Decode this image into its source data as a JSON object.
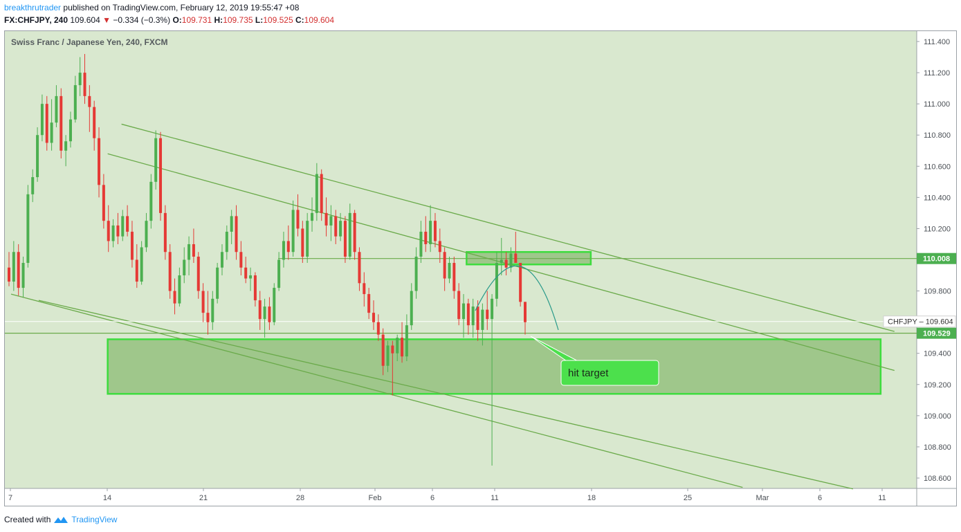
{
  "header": {
    "author": "breakthrutrader",
    "published": "published on TradingView.com, February 12, 2019 19:55:47 +08",
    "symbol": "FX:CHFJPY, 240",
    "last": "109.604",
    "change": "−0.334 (−0.3%)",
    "o_label": "O:",
    "o_value": "109.731",
    "h_label": "H:",
    "h_value": "109.735",
    "l_label": "L:",
    "l_value": "109.525",
    "c_label": "C:",
    "c_value": "109.604"
  },
  "footer": {
    "created_with": "Created with",
    "brand": "TradingView"
  },
  "colors": {
    "background": "#d9e8cf",
    "zone_fill": "#9fc78b",
    "zone_stroke": "#3ddc3d",
    "trendline": "#6aaa4a",
    "candle_up": "#4caf50",
    "candle_down": "#e53935",
    "callout_fill": "#4ce04c",
    "price_tag_green": "#4caf50"
  },
  "chart_data": {
    "type": "candlestick",
    "title": "Swiss Franc / Japanese Yen, 240, FXCM",
    "x_ticks": [
      "7",
      "14",
      "21",
      "28",
      "Feb",
      "6",
      "11",
      "18",
      "25",
      "Mar",
      "6",
      "11"
    ],
    "y_ticks": [
      "111.400",
      "111.200",
      "111.000",
      "110.800",
      "110.600",
      "110.400",
      "110.200",
      "110.000",
      "109.800",
      "109.600",
      "109.400",
      "109.200",
      "109.000",
      "108.800",
      "108.600"
    ],
    "ylim": [
      108.5,
      111.5
    ],
    "grid": false,
    "price_labels": [
      {
        "text": "110.008",
        "value": 110.008,
        "style": "green"
      },
      {
        "text": "CHFJPY",
        "value": 109.604,
        "style": "white",
        "price": "109.604"
      },
      {
        "text": "109.529",
        "value": 109.529,
        "style": "green"
      }
    ],
    "horizontal_lines": [
      110.008,
      109.604,
      109.529
    ],
    "zones": [
      {
        "name": "upper-zone",
        "x": [
          "Feb 9",
          "Feb 18"
        ],
        "y": [
          109.97,
          110.05
        ]
      },
      {
        "name": "target-zone",
        "x": [
          "Jan 14",
          "Mar 11"
        ],
        "y": [
          109.14,
          109.49
        ]
      }
    ],
    "channels": [
      {
        "name": "channel-1",
        "x": [
          "Jan 15",
          "Mar 12"
        ],
        "y": [
          110.87,
          109.54
        ]
      },
      {
        "name": "channel-2",
        "x": [
          "Jan 14",
          "Mar 12"
        ],
        "y": [
          110.68,
          109.29
        ]
      },
      {
        "name": "channel-3",
        "x": [
          "Jan 9",
          "Mar 9"
        ],
        "y": [
          109.74,
          108.53
        ]
      },
      {
        "name": "channel-4",
        "x": [
          "Jan 7",
          "Mar 1"
        ],
        "y": [
          109.78,
          108.54
        ]
      }
    ],
    "annotation": {
      "text": "hit target"
    },
    "candles": [
      {
        "o": 109.95,
        "h": 110.05,
        "l": 109.83,
        "c": 109.86
      },
      {
        "o": 109.86,
        "h": 110.12,
        "l": 109.8,
        "c": 110.05
      },
      {
        "o": 110.05,
        "h": 110.1,
        "l": 109.77,
        "c": 109.82
      },
      {
        "o": 109.82,
        "h": 110.02,
        "l": 109.76,
        "c": 109.98
      },
      {
        "o": 109.98,
        "h": 110.48,
        "l": 109.95,
        "c": 110.42
      },
      {
        "o": 110.42,
        "h": 110.58,
        "l": 110.37,
        "c": 110.53
      },
      {
        "o": 110.53,
        "h": 110.85,
        "l": 110.5,
        "c": 110.8
      },
      {
        "o": 110.8,
        "h": 111.06,
        "l": 110.76,
        "c": 111.0
      },
      {
        "o": 111.0,
        "h": 111.05,
        "l": 110.7,
        "c": 110.75
      },
      {
        "o": 110.75,
        "h": 111.03,
        "l": 110.7,
        "c": 110.88
      },
      {
        "o": 110.88,
        "h": 111.12,
        "l": 110.85,
        "c": 111.05
      },
      {
        "o": 111.05,
        "h": 111.1,
        "l": 110.65,
        "c": 110.7
      },
      {
        "o": 110.7,
        "h": 110.8,
        "l": 110.6,
        "c": 110.76
      },
      {
        "o": 110.76,
        "h": 110.95,
        "l": 110.72,
        "c": 110.9
      },
      {
        "o": 110.9,
        "h": 111.18,
        "l": 110.88,
        "c": 111.12
      },
      {
        "o": 111.12,
        "h": 111.3,
        "l": 111.05,
        "c": 111.2
      },
      {
        "o": 111.2,
        "h": 111.32,
        "l": 111.0,
        "c": 111.05
      },
      {
        "o": 111.05,
        "h": 111.12,
        "l": 110.82,
        "c": 110.98
      },
      {
        "o": 110.98,
        "h": 111.02,
        "l": 110.7,
        "c": 110.78
      },
      {
        "o": 110.78,
        "h": 110.85,
        "l": 110.4,
        "c": 110.48
      },
      {
        "o": 110.48,
        "h": 110.55,
        "l": 110.2,
        "c": 110.25
      },
      {
        "o": 110.25,
        "h": 110.35,
        "l": 110.05,
        "c": 110.12
      },
      {
        "o": 110.12,
        "h": 110.26,
        "l": 110.08,
        "c": 110.22
      },
      {
        "o": 110.22,
        "h": 110.3,
        "l": 110.1,
        "c": 110.15
      },
      {
        "o": 110.15,
        "h": 110.32,
        "l": 110.12,
        "c": 110.28
      },
      {
        "o": 110.28,
        "h": 110.35,
        "l": 110.15,
        "c": 110.18
      },
      {
        "o": 110.18,
        "h": 110.25,
        "l": 109.95,
        "c": 110.0
      },
      {
        "o": 110.0,
        "h": 110.1,
        "l": 109.82,
        "c": 109.86
      },
      {
        "o": 109.86,
        "h": 110.12,
        "l": 109.84,
        "c": 110.08
      },
      {
        "o": 110.08,
        "h": 110.3,
        "l": 110.05,
        "c": 110.25
      },
      {
        "o": 110.25,
        "h": 110.55,
        "l": 110.2,
        "c": 110.5
      },
      {
        "o": 110.5,
        "h": 110.83,
        "l": 110.45,
        "c": 110.78
      },
      {
        "o": 110.78,
        "h": 110.82,
        "l": 110.25,
        "c": 110.3
      },
      {
        "o": 110.3,
        "h": 110.35,
        "l": 110.0,
        "c": 110.05
      },
      {
        "o": 110.05,
        "h": 110.1,
        "l": 109.75,
        "c": 109.8
      },
      {
        "o": 109.8,
        "h": 109.88,
        "l": 109.65,
        "c": 109.72
      },
      {
        "o": 109.72,
        "h": 109.95,
        "l": 109.7,
        "c": 109.9
      },
      {
        "o": 109.9,
        "h": 110.08,
        "l": 109.85,
        "c": 110.0
      },
      {
        "o": 110.0,
        "h": 110.15,
        "l": 109.9,
        "c": 110.1
      },
      {
        "o": 110.1,
        "h": 110.2,
        "l": 109.98,
        "c": 110.02
      },
      {
        "o": 110.02,
        "h": 110.05,
        "l": 109.75,
        "c": 109.8
      },
      {
        "o": 109.8,
        "h": 109.85,
        "l": 109.6,
        "c": 109.66
      },
      {
        "o": 109.66,
        "h": 109.8,
        "l": 109.52,
        "c": 109.6
      },
      {
        "o": 109.6,
        "h": 109.8,
        "l": 109.55,
        "c": 109.75
      },
      {
        "o": 109.75,
        "h": 109.98,
        "l": 109.72,
        "c": 109.95
      },
      {
        "o": 109.95,
        "h": 110.1,
        "l": 109.9,
        "c": 110.05
      },
      {
        "o": 110.05,
        "h": 110.22,
        "l": 110.0,
        "c": 110.18
      },
      {
        "o": 110.18,
        "h": 110.32,
        "l": 110.1,
        "c": 110.28
      },
      {
        "o": 110.28,
        "h": 110.35,
        "l": 110.0,
        "c": 110.05
      },
      {
        "o": 110.05,
        "h": 110.12,
        "l": 109.9,
        "c": 109.95
      },
      {
        "o": 109.95,
        "h": 110.02,
        "l": 109.85,
        "c": 109.88
      },
      {
        "o": 109.88,
        "h": 109.95,
        "l": 109.8,
        "c": 109.9
      },
      {
        "o": 109.9,
        "h": 109.92,
        "l": 109.7,
        "c": 109.74
      },
      {
        "o": 109.74,
        "h": 109.8,
        "l": 109.55,
        "c": 109.62
      },
      {
        "o": 109.62,
        "h": 109.75,
        "l": 109.5,
        "c": 109.7
      },
      {
        "o": 109.7,
        "h": 109.76,
        "l": 109.55,
        "c": 109.6
      },
      {
        "o": 109.6,
        "h": 109.85,
        "l": 109.58,
        "c": 109.82
      },
      {
        "o": 109.82,
        "h": 110.05,
        "l": 109.8,
        "c": 110.0
      },
      {
        "o": 110.0,
        "h": 110.18,
        "l": 109.95,
        "c": 110.12
      },
      {
        "o": 110.12,
        "h": 110.22,
        "l": 110.0,
        "c": 110.05
      },
      {
        "o": 110.05,
        "h": 110.38,
        "l": 110.02,
        "c": 110.32
      },
      {
        "o": 110.32,
        "h": 110.42,
        "l": 110.15,
        "c": 110.2
      },
      {
        "o": 110.2,
        "h": 110.25,
        "l": 109.98,
        "c": 110.02
      },
      {
        "o": 110.02,
        "h": 110.3,
        "l": 109.98,
        "c": 110.25
      },
      {
        "o": 110.25,
        "h": 110.4,
        "l": 110.18,
        "c": 110.3
      },
      {
        "o": 110.3,
        "h": 110.62,
        "l": 110.25,
        "c": 110.55
      },
      {
        "o": 110.55,
        "h": 110.58,
        "l": 110.25,
        "c": 110.3
      },
      {
        "o": 110.3,
        "h": 110.4,
        "l": 110.15,
        "c": 110.22
      },
      {
        "o": 110.22,
        "h": 110.35,
        "l": 110.12,
        "c": 110.28
      },
      {
        "o": 110.28,
        "h": 110.32,
        "l": 110.1,
        "c": 110.15
      },
      {
        "o": 110.15,
        "h": 110.3,
        "l": 110.12,
        "c": 110.25
      },
      {
        "o": 110.25,
        "h": 110.28,
        "l": 109.98,
        "c": 110.02
      },
      {
        "o": 110.02,
        "h": 110.36,
        "l": 110.0,
        "c": 110.3
      },
      {
        "o": 110.3,
        "h": 110.32,
        "l": 110.0,
        "c": 110.05
      },
      {
        "o": 110.05,
        "h": 110.08,
        "l": 109.8,
        "c": 109.85
      },
      {
        "o": 109.85,
        "h": 109.92,
        "l": 109.7,
        "c": 109.78
      },
      {
        "o": 109.78,
        "h": 109.82,
        "l": 109.62,
        "c": 109.66
      },
      {
        "o": 109.66,
        "h": 109.74,
        "l": 109.55,
        "c": 109.6
      },
      {
        "o": 109.6,
        "h": 109.65,
        "l": 109.48,
        "c": 109.52
      },
      {
        "o": 109.52,
        "h": 109.56,
        "l": 109.26,
        "c": 109.32
      },
      {
        "o": 109.32,
        "h": 109.48,
        "l": 109.28,
        "c": 109.45
      },
      {
        "o": 109.45,
        "h": 109.48,
        "l": 109.13,
        "c": 109.4
      },
      {
        "o": 109.4,
        "h": 109.52,
        "l": 109.35,
        "c": 109.5
      },
      {
        "o": 109.5,
        "h": 109.6,
        "l": 109.34,
        "c": 109.38
      },
      {
        "o": 109.38,
        "h": 109.65,
        "l": 109.35,
        "c": 109.58
      },
      {
        "o": 109.58,
        "h": 109.85,
        "l": 109.55,
        "c": 109.8
      },
      {
        "o": 109.8,
        "h": 110.08,
        "l": 109.75,
        "c": 110.02
      },
      {
        "o": 110.02,
        "h": 110.25,
        "l": 109.98,
        "c": 110.18
      },
      {
        "o": 110.18,
        "h": 110.28,
        "l": 110.05,
        "c": 110.1
      },
      {
        "o": 110.1,
        "h": 110.35,
        "l": 110.05,
        "c": 110.25
      },
      {
        "o": 110.25,
        "h": 110.3,
        "l": 110.08,
        "c": 110.12
      },
      {
        "o": 110.12,
        "h": 110.2,
        "l": 109.98,
        "c": 110.05
      },
      {
        "o": 110.05,
        "h": 110.08,
        "l": 109.8,
        "c": 109.88
      },
      {
        "o": 109.88,
        "h": 110.02,
        "l": 109.85,
        "c": 109.98
      },
      {
        "o": 109.98,
        "h": 110.02,
        "l": 109.75,
        "c": 109.8
      },
      {
        "o": 109.8,
        "h": 109.85,
        "l": 109.58,
        "c": 109.62
      },
      {
        "o": 109.62,
        "h": 109.78,
        "l": 109.5,
        "c": 109.72
      },
      {
        "o": 109.72,
        "h": 109.75,
        "l": 109.52,
        "c": 109.58
      },
      {
        "o": 109.58,
        "h": 109.75,
        "l": 109.5,
        "c": 109.7
      },
      {
        "o": 109.7,
        "h": 109.74,
        "l": 109.48,
        "c": 109.55
      },
      {
        "o": 109.55,
        "h": 109.72,
        "l": 109.45,
        "c": 109.68
      },
      {
        "o": 109.68,
        "h": 109.8,
        "l": 109.55,
        "c": 109.62
      },
      {
        "o": 109.62,
        "h": 109.78,
        "l": 108.68,
        "c": 109.75
      },
      {
        "o": 109.75,
        "h": 110.05,
        "l": 109.7,
        "c": 109.98
      },
      {
        "o": 109.98,
        "h": 110.14,
        "l": 109.9,
        "c": 110.0
      },
      {
        "o": 110.0,
        "h": 110.05,
        "l": 109.9,
        "c": 109.95
      },
      {
        "o": 109.95,
        "h": 110.08,
        "l": 109.92,
        "c": 110.04
      },
      {
        "o": 110.04,
        "h": 110.18,
        "l": 110.0,
        "c": 109.98
      },
      {
        "o": 109.98,
        "h": 109.98,
        "l": 109.7,
        "c": 109.73
      },
      {
        "o": 109.73,
        "h": 109.73,
        "l": 109.52,
        "c": 109.6
      }
    ]
  }
}
